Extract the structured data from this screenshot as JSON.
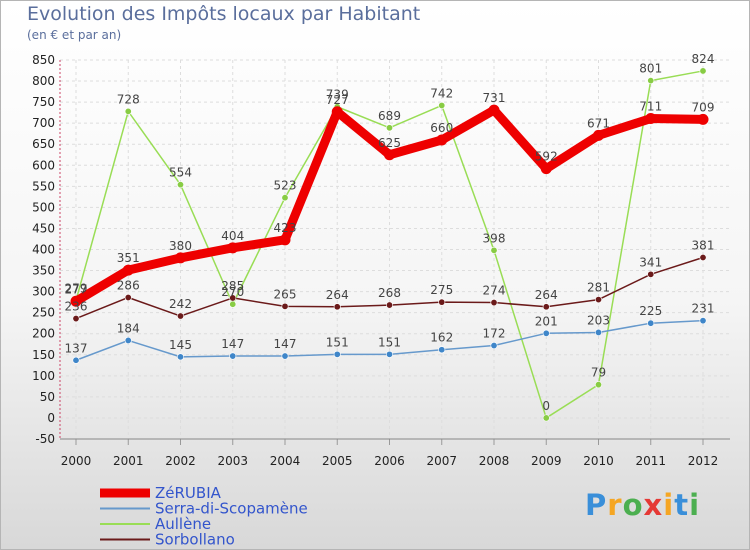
{
  "chart_data": {
    "type": "line",
    "title": "Evolution des Impôts locaux par Habitant",
    "subtitle": "(en € et par an)",
    "xlabel": "",
    "ylabel": "",
    "categories": [
      "2000",
      "2001",
      "2002",
      "2003",
      "2004",
      "2005",
      "2006",
      "2007",
      "2008",
      "2009",
      "2010",
      "2011",
      "2012"
    ],
    "ylim": [
      -50,
      850
    ],
    "yticks": [
      -50,
      0,
      50,
      100,
      150,
      200,
      250,
      300,
      350,
      400,
      450,
      500,
      550,
      600,
      650,
      700,
      750,
      800,
      850
    ],
    "grid": true,
    "legend_position": "bottom-left",
    "series": [
      {
        "name": "Aullène",
        "color": "#99dd55",
        "point_color": "#88cc44",
        "values": [
          279,
          728,
          554,
          270,
          523,
          739,
          689,
          742,
          398,
          0,
          79,
          801,
          824
        ]
      },
      {
        "name": "Sorbollano",
        "color": "#6b1a1a",
        "point_color": "#6b1a1a",
        "values": [
          236,
          286,
          242,
          285,
          265,
          264,
          268,
          275,
          274,
          264,
          281,
          341,
          381
        ]
      },
      {
        "name": "Serra-di-Scopamène",
        "color": "#6699cc",
        "point_color": "#3f86c9",
        "values": [
          137,
          184,
          145,
          147,
          147,
          151,
          151,
          162,
          172,
          201,
          203,
          225,
          231
        ]
      },
      {
        "name": "ZéRUBIA",
        "color": "#ee0000",
        "point_color": "#ee0000",
        "values": [
          277,
          351,
          380,
          404,
          423,
          727,
          625,
          660,
          731,
          592,
          671,
          711,
          709
        ]
      }
    ],
    "legend_order": [
      "ZéRUBIA",
      "Serra-di-Scopamène",
      "Aullène",
      "Sorbollano"
    ]
  },
  "logo": {
    "letters": [
      "P",
      "r",
      "o",
      "x",
      "i",
      "t",
      "i"
    ],
    "colors": [
      "#3a8fd9",
      "#f5a623",
      "#4caf50",
      "#e53935",
      "#f5a623",
      "#3a8fd9",
      "#4caf50"
    ]
  }
}
